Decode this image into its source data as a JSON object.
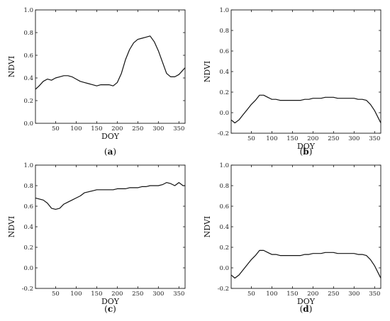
{
  "chart_data": [
    {
      "type": "line",
      "panel_label": "(a)",
      "panel_letter": "a",
      "xlabel": "DOY",
      "ylabel": "NDVI",
      "xlim": [
        1,
        365
      ],
      "ylim": [
        0.0,
        1.0
      ],
      "xticks": [
        50,
        100,
        150,
        200,
        250,
        300,
        350
      ],
      "yticks": [
        0.0,
        0.2,
        0.4,
        0.6,
        0.8,
        1.0
      ],
      "series": [
        {
          "x": [
            1,
            10,
            20,
            30,
            40,
            50,
            60,
            70,
            80,
            90,
            100,
            110,
            120,
            130,
            140,
            150,
            160,
            170,
            180,
            190,
            200,
            210,
            220,
            230,
            240,
            250,
            260,
            270,
            280,
            290,
            300,
            310,
            320,
            330,
            340,
            350,
            360,
            365
          ],
          "y": [
            0.3,
            0.33,
            0.37,
            0.39,
            0.38,
            0.4,
            0.41,
            0.42,
            0.42,
            0.41,
            0.39,
            0.37,
            0.36,
            0.35,
            0.34,
            0.33,
            0.34,
            0.34,
            0.34,
            0.33,
            0.36,
            0.44,
            0.56,
            0.65,
            0.71,
            0.74,
            0.75,
            0.76,
            0.77,
            0.72,
            0.64,
            0.54,
            0.44,
            0.41,
            0.41,
            0.43,
            0.47,
            0.49
          ]
        }
      ]
    },
    {
      "type": "line",
      "panel_label": "(b)",
      "panel_letter": "b",
      "xlabel": "DOY",
      "ylabel": "NDVI",
      "xlim": [
        1,
        365
      ],
      "ylim": [
        -0.2,
        1.0
      ],
      "xticks": [
        50,
        100,
        150,
        200,
        250,
        300,
        350
      ],
      "yticks": [
        -0.2,
        0.0,
        0.2,
        0.4,
        0.6,
        0.8,
        1.0
      ],
      "series": [
        {
          "x": [
            1,
            10,
            20,
            30,
            40,
            50,
            60,
            70,
            80,
            90,
            100,
            110,
            120,
            130,
            140,
            150,
            160,
            170,
            180,
            190,
            200,
            210,
            220,
            230,
            240,
            250,
            260,
            270,
            280,
            290,
            300,
            310,
            320,
            330,
            340,
            350,
            360,
            365
          ],
          "y": [
            -0.07,
            -0.1,
            -0.07,
            -0.02,
            0.03,
            0.08,
            0.12,
            0.17,
            0.17,
            0.15,
            0.13,
            0.13,
            0.12,
            0.12,
            0.12,
            0.12,
            0.12,
            0.12,
            0.13,
            0.13,
            0.14,
            0.14,
            0.14,
            0.15,
            0.15,
            0.15,
            0.14,
            0.14,
            0.14,
            0.14,
            0.14,
            0.13,
            0.13,
            0.12,
            0.08,
            0.02,
            -0.06,
            -0.1
          ]
        }
      ]
    },
    {
      "type": "line",
      "panel_label": "(c)",
      "panel_letter": "c",
      "xlabel": "DOY",
      "ylabel": "NDVI",
      "xlim": [
        1,
        365
      ],
      "ylim": [
        -0.2,
        1.0
      ],
      "xticks": [
        50,
        100,
        150,
        200,
        250,
        300,
        350
      ],
      "yticks": [
        -0.2,
        0.0,
        0.2,
        0.4,
        0.6,
        0.8,
        1.0
      ],
      "series": [
        {
          "x": [
            1,
            10,
            20,
            30,
            40,
            50,
            60,
            70,
            80,
            90,
            100,
            110,
            120,
            130,
            140,
            150,
            160,
            170,
            180,
            190,
            200,
            210,
            220,
            230,
            240,
            250,
            260,
            270,
            280,
            290,
            300,
            310,
            320,
            330,
            340,
            350,
            360,
            365
          ],
          "y": [
            0.68,
            0.67,
            0.66,
            0.63,
            0.58,
            0.57,
            0.58,
            0.62,
            0.64,
            0.66,
            0.68,
            0.7,
            0.73,
            0.74,
            0.75,
            0.76,
            0.76,
            0.76,
            0.76,
            0.76,
            0.77,
            0.77,
            0.77,
            0.78,
            0.78,
            0.78,
            0.79,
            0.79,
            0.8,
            0.8,
            0.8,
            0.81,
            0.83,
            0.82,
            0.8,
            0.83,
            0.8,
            0.8
          ]
        }
      ]
    },
    {
      "type": "line",
      "panel_label": "(d)",
      "panel_letter": "d",
      "xlabel": "DOY",
      "ylabel": "NDVI",
      "xlim": [
        1,
        365
      ],
      "ylim": [
        -0.2,
        1.0
      ],
      "xticks": [
        50,
        100,
        150,
        200,
        250,
        300,
        350
      ],
      "yticks": [
        -0.2,
        0.0,
        0.2,
        0.4,
        0.6,
        0.8,
        1.0
      ],
      "series": [
        {
          "x": [
            1,
            10,
            20,
            30,
            40,
            50,
            60,
            70,
            80,
            90,
            100,
            110,
            120,
            130,
            140,
            150,
            160,
            170,
            180,
            190,
            200,
            210,
            220,
            230,
            240,
            250,
            260,
            270,
            280,
            290,
            300,
            310,
            320,
            330,
            340,
            350,
            360,
            365
          ],
          "y": [
            -0.07,
            -0.1,
            -0.07,
            -0.02,
            0.03,
            0.08,
            0.12,
            0.17,
            0.17,
            0.15,
            0.13,
            0.13,
            0.12,
            0.12,
            0.12,
            0.12,
            0.12,
            0.12,
            0.13,
            0.13,
            0.14,
            0.14,
            0.14,
            0.15,
            0.15,
            0.15,
            0.14,
            0.14,
            0.14,
            0.14,
            0.14,
            0.13,
            0.13,
            0.12,
            0.08,
            0.02,
            -0.06,
            -0.1
          ]
        }
      ]
    }
  ]
}
